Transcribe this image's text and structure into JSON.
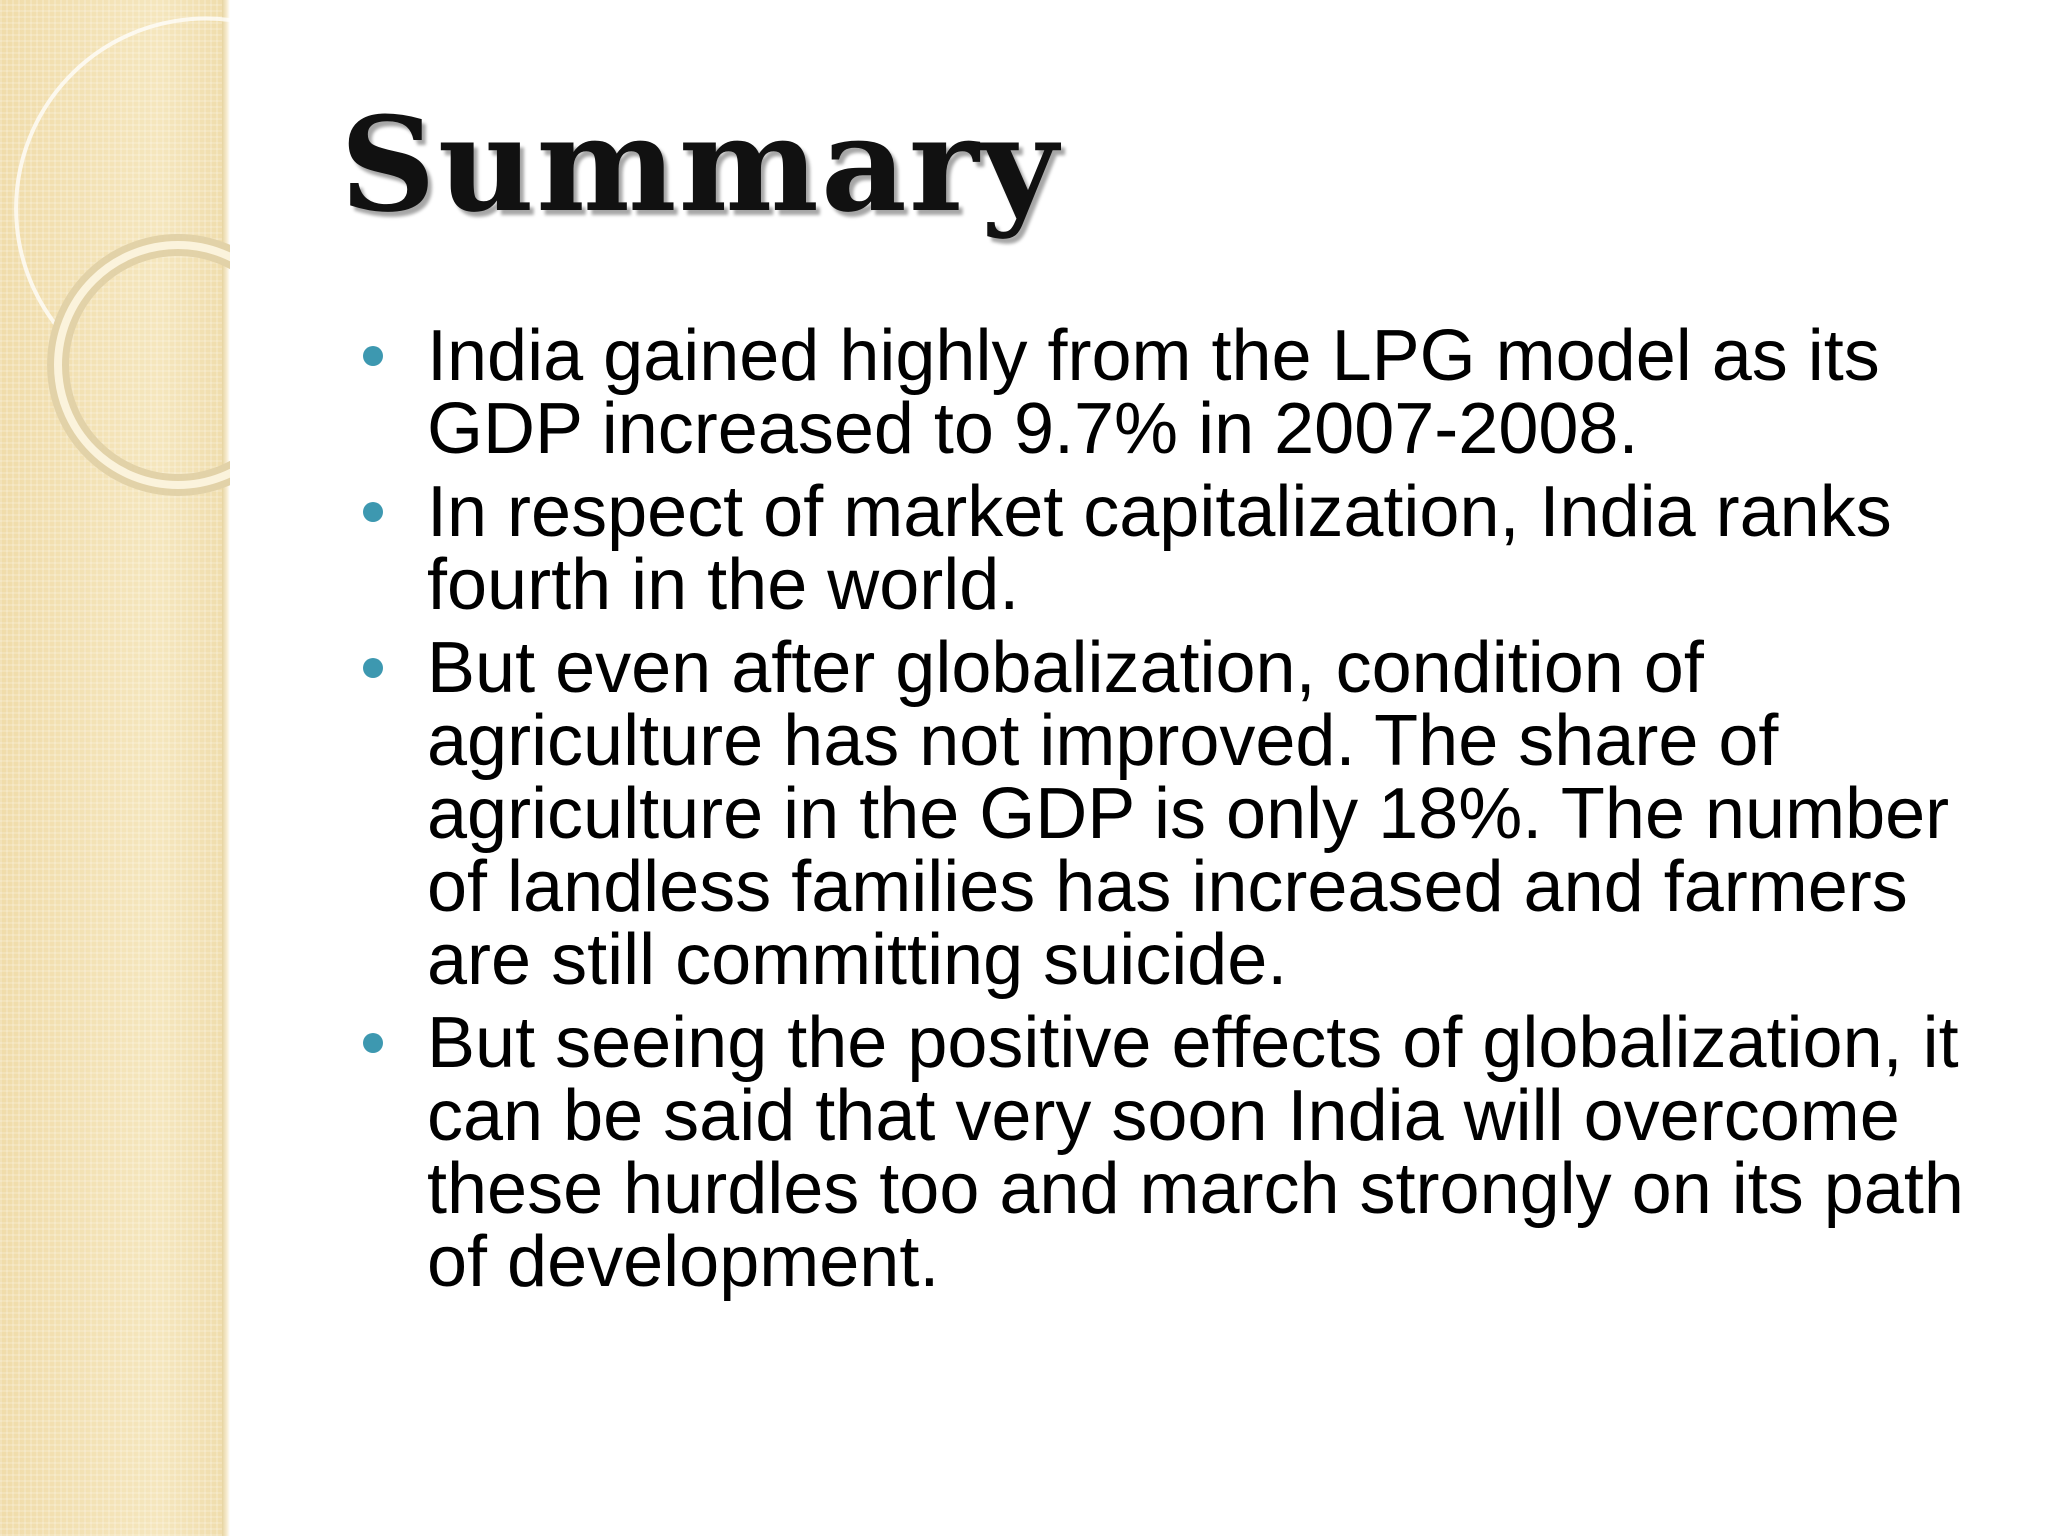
{
  "slide": {
    "title": "Summary",
    "bullets": [
      {
        "text": "India gained highly from the LPG model as its GDP increased to 9.7% in 2007-2008."
      },
      {
        "text": "In respect of market capitalization, India ranks fourth in the world."
      },
      {
        "text": "But even after globalization, condition of agriculture has not improved. The share of agriculture in the GDP is only 18%. The number of landless families has increased and farmers are still committing suicide."
      },
      {
        "text": "But seeing the positive effects of globalization, it can be said that very soon India will overcome these hurdles too and march strongly on its path of development."
      }
    ]
  },
  "colors": {
    "side_panel": "#f3e2b4",
    "bullet": "#3d98b0",
    "text": "#000000"
  }
}
